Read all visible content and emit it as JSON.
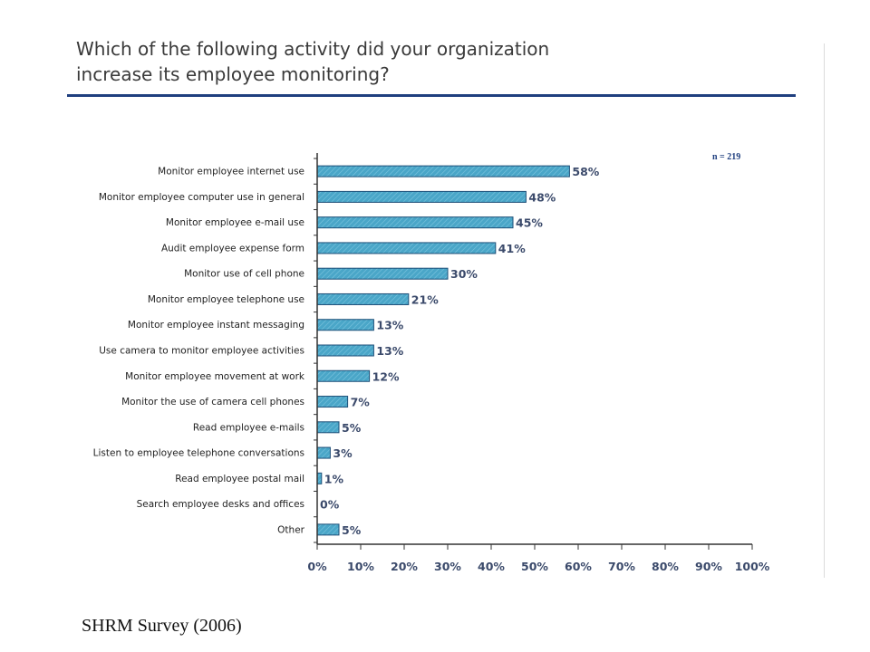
{
  "page": {
    "title_line1": "Which of the following activity did your organization",
    "title_line2": "increase its employee monitoring?",
    "caption": "SHRM Survey (2006)"
  },
  "colors": {
    "bar_fill": "#4aa6c8",
    "bar_stroke": "#1d4f78",
    "axis": "#333333",
    "label_text": "#222222",
    "rule": "#1f3f7f"
  },
  "chart_data": {
    "type": "bar",
    "orientation": "horizontal",
    "note": "n = 219",
    "categories": [
      "Monitor employee internet use",
      "Monitor employee computer use in general",
      "Monitor employee e-mail use",
      "Audit employee expense form",
      "Monitor use of cell phone",
      "Monitor employee telephone use",
      "Monitor employee instant messaging",
      "Use camera to monitor employee activities",
      "Monitor employee movement at work",
      "Monitor the use of camera cell phones",
      "Read employee e-mails",
      "Listen to employee telephone conversations",
      "Read employee postal mail",
      "Search employee desks and offices",
      "Other"
    ],
    "values": [
      58,
      48,
      45,
      41,
      30,
      21,
      13,
      13,
      12,
      7,
      5,
      3,
      1,
      0,
      5
    ],
    "value_labels": [
      "58%",
      "48%",
      "45%",
      "41%",
      "30%",
      "21%",
      "13%",
      "13%",
      "12%",
      "7%",
      "5%",
      "3%",
      "1%",
      "0%",
      "5%"
    ],
    "xlim": [
      0,
      100
    ],
    "x_ticks": [
      0,
      10,
      20,
      30,
      40,
      50,
      60,
      70,
      80,
      90,
      100
    ],
    "x_tick_labels": [
      "0%",
      "10%",
      "20%",
      "30%",
      "40%",
      "50%",
      "60%",
      "70%",
      "80%",
      "90%",
      "100%"
    ],
    "grid": false,
    "legend": "none"
  }
}
